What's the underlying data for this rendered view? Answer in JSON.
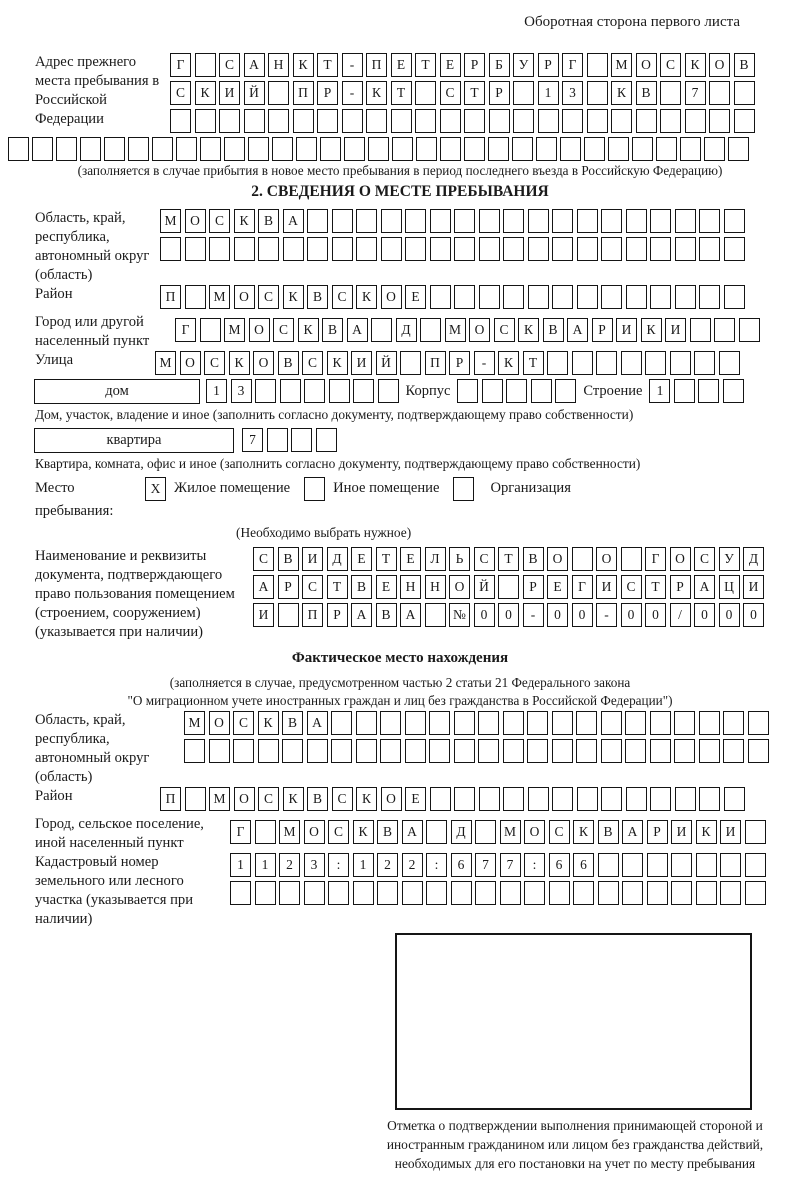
{
  "header": {
    "note": "Оборотная сторона первого листа"
  },
  "prev_address": {
    "label": "Адрес прежнего места пребывания в Российской Федерации",
    "rows": [
      {
        "count": 24,
        "text": "Г САНКТ-ПЕТЕРБУРГ МОСКОВ"
      },
      {
        "count": 24,
        "text": "СКИЙ ПР-КТ СТР 13 КВ 7"
      },
      {
        "count": 24,
        "text": ""
      },
      {
        "count": 31,
        "text": ""
      }
    ],
    "note": "(заполняется в случае прибытия в новое место пребывания в период последнего въезда в Российскую Федерацию)"
  },
  "section2": {
    "title": "2. СВЕДЕНИЯ О МЕСТЕ ПРЕБЫВАНИЯ",
    "region": {
      "label": "Область, край, республика, автономный округ (область)",
      "rows": [
        {
          "count": 24,
          "text": "МОСКВА"
        },
        {
          "count": 24,
          "text": ""
        }
      ]
    },
    "district": {
      "label": "Район",
      "row": {
        "count": 24,
        "text": "П МОСКВСКОЕ"
      }
    },
    "city": {
      "label": "Город или другой населенный пункт",
      "row": {
        "count": 24,
        "text": "Г МОСКВА Д МОСКВАРИКИ"
      }
    },
    "street": {
      "label": "Улица",
      "row": {
        "count": 24,
        "text": "МОСКОВСКИЙ ПР-КТ"
      }
    },
    "house": {
      "box_label": "дом",
      "number": {
        "count": 8,
        "text": "13"
      },
      "korpus_label": "Корпус",
      "korpus": {
        "count": 5,
        "text": ""
      },
      "stroenie_label": "Строение",
      "stroenie": {
        "count": 4,
        "text": "1"
      },
      "caption": "Дом, участок, владение и иное (заполнить согласно документу, подтверждающему право собственности)"
    },
    "apartment": {
      "box_label": "квартира",
      "number": {
        "count": 4,
        "text": "7"
      },
      "caption": "Квартира, комната, офис и иное (заполнить согласно документу, подтверждающему право собственности)"
    },
    "stay": {
      "label": "Место пребывания:",
      "options": [
        {
          "box": {
            "count": 1,
            "text": "X"
          },
          "label": "Жилое помещение"
        },
        {
          "box": {
            "count": 1,
            "text": ""
          },
          "label": "Иное помещение"
        },
        {
          "box": {
            "count": 1,
            "text": ""
          },
          "label": "Организация"
        }
      ],
      "note": "(Необходимо выбрать нужное)"
    },
    "document": {
      "label": "Наименование и реквизиты документа, подтверждающего право пользования помещением (строением, сооружением) (указывается при наличии)",
      "rows": [
        {
          "count": 21,
          "text": "СВИДЕТЕЛЬСТВО О ГОСУД"
        },
        {
          "count": 21,
          "text": "АРСТВЕННОЙ РЕГИСТРАЦИ"
        },
        {
          "count": 21,
          "text": "И ПРАВА №00-00-00/000"
        }
      ]
    }
  },
  "actual_location": {
    "title": "Фактическое место нахождения",
    "note_lines": [
      "(заполняется в случае, предусмотренном частью 2 статьи 21 Федерального закона",
      "\"О миграционном учете иностранных граждан и лиц без гражданства в Российской Федерации\")"
    ],
    "region": {
      "label": "Область, край, республика, автономный округ (область)",
      "rows": [
        {
          "count": 24,
          "text": "МОСКВА"
        },
        {
          "count": 24,
          "text": ""
        }
      ]
    },
    "district": {
      "label": "Район",
      "row": {
        "count": 24,
        "text": "П МОСКВСКОЕ"
      }
    },
    "city": {
      "label": "Город, сельское поселение, иной населенный пункт",
      "row": {
        "count": 22,
        "text": "Г МОСКВА Д МОСКВАРИКИ"
      }
    },
    "cadastre": {
      "label": "Кадастровый номер земельного или лесного участка (указывается при наличии)",
      "rows": [
        {
          "count": 22,
          "text": "1123:122:677:66"
        },
        {
          "count": 22,
          "text": ""
        }
      ]
    },
    "stamp_note": "Отметка о подтверждении выполнения принимающей стороной и иностранным гражданином или лицом без гражданства действий, необходимых для его постановки на учет по месту пребывания"
  }
}
